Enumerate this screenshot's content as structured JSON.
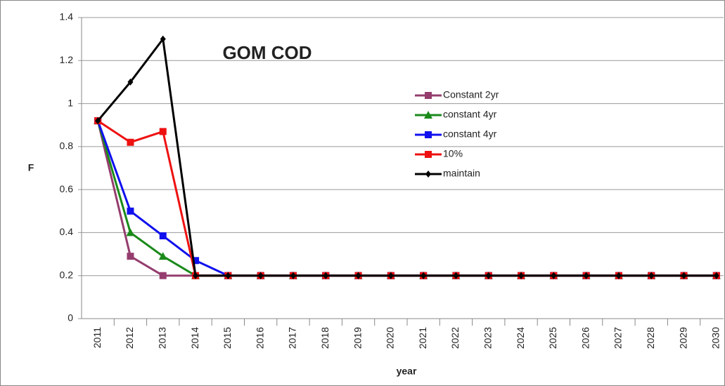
{
  "chart_data": {
    "type": "line",
    "annotation": "GOM COD",
    "x_label": "year",
    "y_label": "F",
    "categories": [
      "2011",
      "2012",
      "2013",
      "2014",
      "2015",
      "2016",
      "2017",
      "2018",
      "2019",
      "2020",
      "2021",
      "2022",
      "2023",
      "2024",
      "2025",
      "2026",
      "2027",
      "2028",
      "2029",
      "2030"
    ],
    "series": [
      {
        "name": "Constant 2yr",
        "color": "#953d6e",
        "marker": "square",
        "values": [
          0.92,
          0.29,
          0.2,
          0.2,
          0.2,
          0.2,
          0.2,
          0.2,
          0.2,
          0.2,
          0.2,
          0.2,
          0.2,
          0.2,
          0.2,
          0.2,
          0.2,
          0.2,
          0.2,
          0.2
        ]
      },
      {
        "name": "constant 4yr",
        "color": "#1a8a1a",
        "marker": "triangle",
        "values": [
          0.92,
          0.4,
          0.29,
          0.2,
          0.2,
          0.2,
          0.2,
          0.2,
          0.2,
          0.2,
          0.2,
          0.2,
          0.2,
          0.2,
          0.2,
          0.2,
          0.2,
          0.2,
          0.2,
          0.2
        ]
      },
      {
        "name": "constant 4yr",
        "color": "#1010ee",
        "marker": "square",
        "values": [
          0.92,
          0.5,
          0.385,
          0.27,
          0.2,
          0.2,
          0.2,
          0.2,
          0.2,
          0.2,
          0.2,
          0.2,
          0.2,
          0.2,
          0.2,
          0.2,
          0.2,
          0.2,
          0.2,
          0.2
        ]
      },
      {
        "name": "10%",
        "color": "#ee1111",
        "marker": "square",
        "values": [
          0.92,
          0.82,
          0.87,
          0.2,
          0.2,
          0.2,
          0.2,
          0.2,
          0.2,
          0.2,
          0.2,
          0.2,
          0.2,
          0.2,
          0.2,
          0.2,
          0.2,
          0.2,
          0.2,
          0.2
        ]
      },
      {
        "name": "maintain",
        "color": "#000000",
        "marker": "diamond",
        "values": [
          0.92,
          1.1,
          1.3,
          0.2,
          0.2,
          0.2,
          0.2,
          0.2,
          0.2,
          0.2,
          0.2,
          0.2,
          0.2,
          0.2,
          0.2,
          0.2,
          0.2,
          0.2,
          0.2,
          0.2
        ]
      }
    ],
    "ylim": [
      0,
      1.4
    ],
    "yticks": [
      0,
      0.2,
      0.4,
      0.6,
      0.8,
      1,
      1.2,
      1.4
    ],
    "grid": true
  }
}
